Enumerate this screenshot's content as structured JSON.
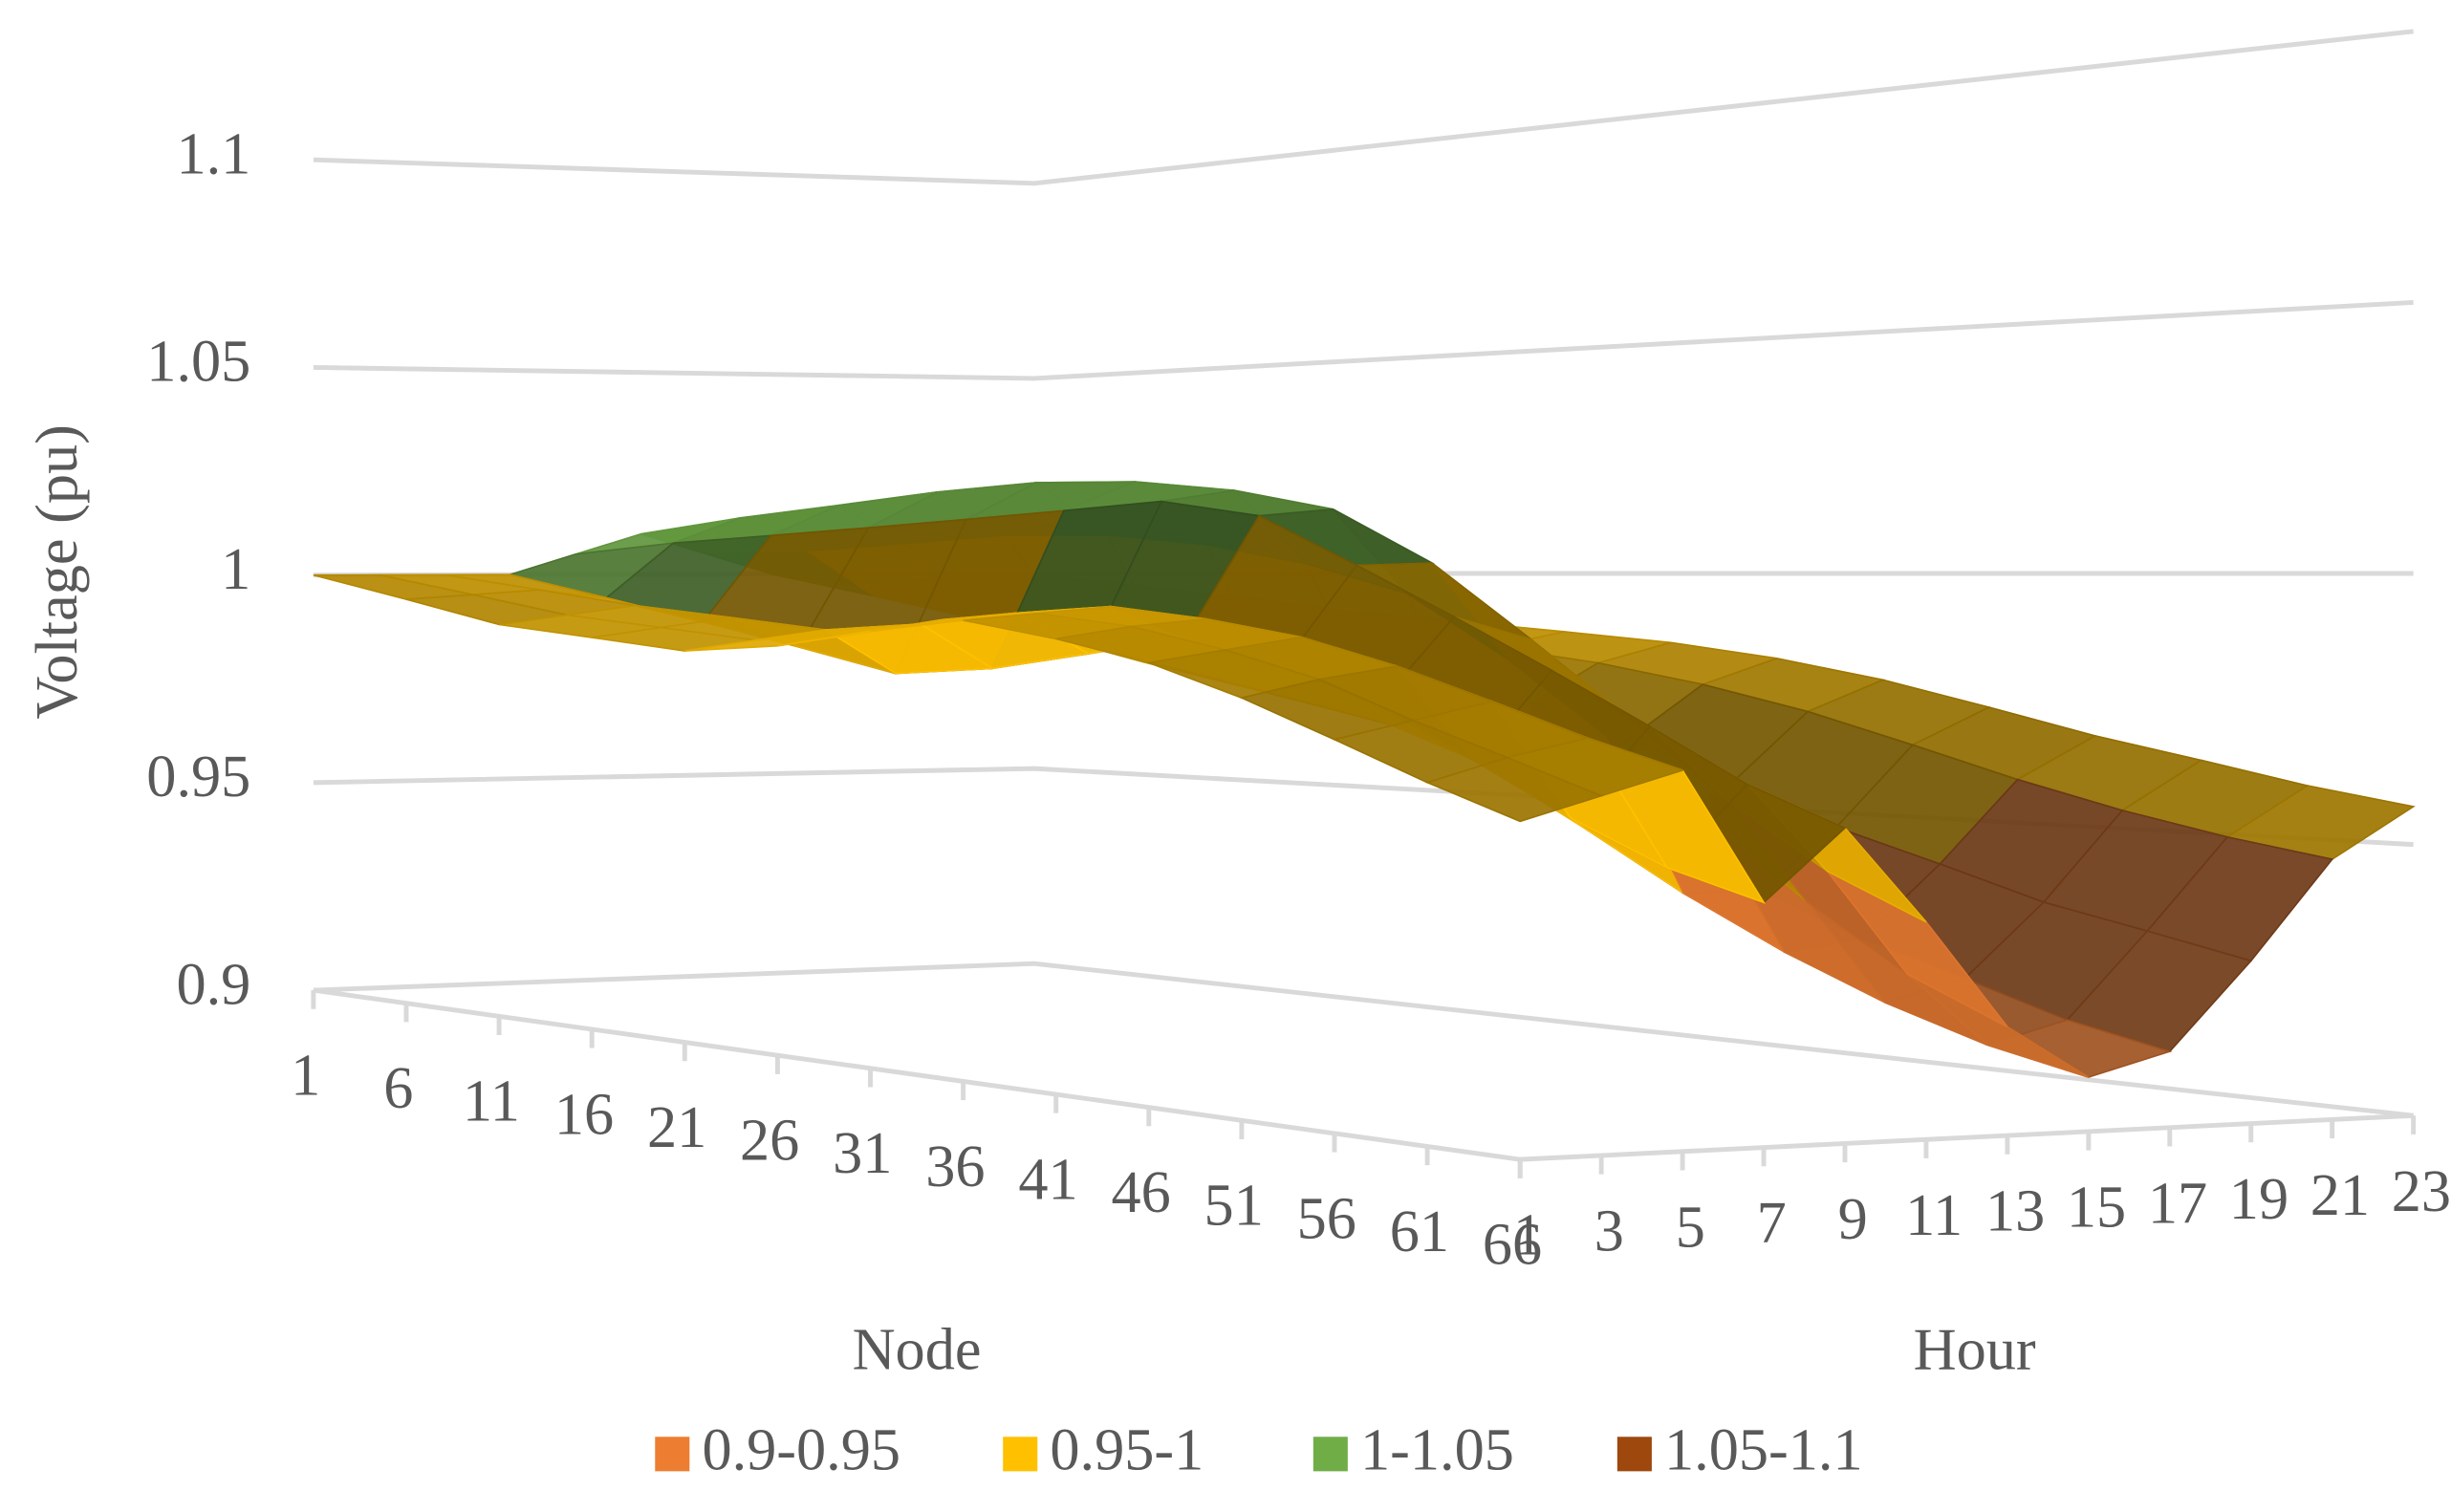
{
  "chart_data": {
    "type": "surface",
    "ylabel": "Voltage (pu)",
    "xlabel": "Node",
    "zlabel": "Hour",
    "categories": [
      "1",
      "6",
      "11",
      "16",
      "21",
      "26",
      "31",
      "36",
      "41",
      "46",
      "51",
      "56",
      "61",
      "66"
    ],
    "hours": [
      "1",
      "3",
      "5",
      "7",
      "9",
      "11",
      "13",
      "15",
      "17",
      "19",
      "21",
      "23"
    ],
    "ylim": [
      0.9,
      1.1
    ],
    "yticks": [
      0.9,
      0.95,
      1,
      1.05,
      1.1
    ],
    "grid": true,
    "series": [
      {
        "name": "0.9-0.95",
        "color": "#ed7d31",
        "range": [
          0.9,
          0.95
        ]
      },
      {
        "name": "0.95-1",
        "color": "#ffc000",
        "range": [
          0.95,
          1
        ]
      },
      {
        "name": "1-1.05",
        "color": "#70ad47",
        "range": [
          1,
          1.05
        ]
      },
      {
        "name": "1.05-1.1",
        "color": "#9e480e",
        "range": [
          1.05,
          1.1
        ]
      }
    ],
    "values": [
      [
        1.0,
        0.995,
        0.99,
        0.988,
        0.986,
        0.988,
        0.992,
        0.995,
        0.992,
        0.988,
        0.982,
        0.975,
        0.968,
        0.962
      ],
      [
        1.0,
        0.996,
        0.992,
        0.99,
        0.988,
        0.99,
        0.994,
        0.996,
        0.994,
        0.99,
        0.985,
        0.978,
        0.972,
        0.966
      ],
      [
        1.0,
        0.997,
        0.994,
        0.992,
        0.99,
        0.992,
        0.995,
        0.997,
        0.995,
        0.992,
        0.987,
        0.981,
        0.975,
        0.97
      ],
      [
        1.0,
        0.995,
        0.99,
        0.985,
        0.98,
        0.982,
        0.986,
        0.99,
        0.985,
        0.978,
        0.968,
        0.958,
        0.95,
        0.945
      ],
      [
        1.005,
        1.008,
        1.01,
        1.012,
        1.014,
        1.016,
        1.018,
        1.015,
        1.005,
        0.995,
        0.985,
        0.975,
        0.965,
        0.958
      ],
      [
        1.01,
        1.014,
        1.017,
        1.02,
        1.022,
        1.022,
        1.02,
        1.016,
        1.005,
        0.99,
        0.975,
        0.96,
        0.948,
        0.94
      ],
      [
        1.005,
        1.006,
        1.008,
        1.01,
        1.01,
        1.008,
        1.004,
        0.998,
        0.985,
        0.97,
        0.955,
        0.94,
        0.928,
        0.92
      ],
      [
        1.0,
        0.995,
        0.99,
        0.985,
        0.98,
        0.975,
        0.97,
        0.962,
        0.95,
        0.938,
        0.928,
        0.92,
        0.914,
        0.91
      ],
      [
        0.998,
        0.992,
        0.986,
        0.98,
        0.975,
        0.97,
        0.965,
        0.958,
        0.948,
        0.938,
        0.93,
        0.924,
        0.918,
        0.914
      ],
      [
        0.998,
        0.993,
        0.988,
        0.984,
        0.98,
        0.976,
        0.972,
        0.966,
        0.958,
        0.95,
        0.944,
        0.938,
        0.934,
        0.93
      ],
      [
        1.0,
        0.996,
        0.992,
        0.989,
        0.986,
        0.984,
        0.981,
        0.977,
        0.972,
        0.966,
        0.96,
        0.955,
        0.951,
        0.948
      ],
      [
        1.0,
        0.997,
        0.994,
        0.991,
        0.989,
        0.987,
        0.985,
        0.982,
        0.978,
        0.973,
        0.968,
        0.964,
        0.96,
        0.957
      ]
    ]
  }
}
